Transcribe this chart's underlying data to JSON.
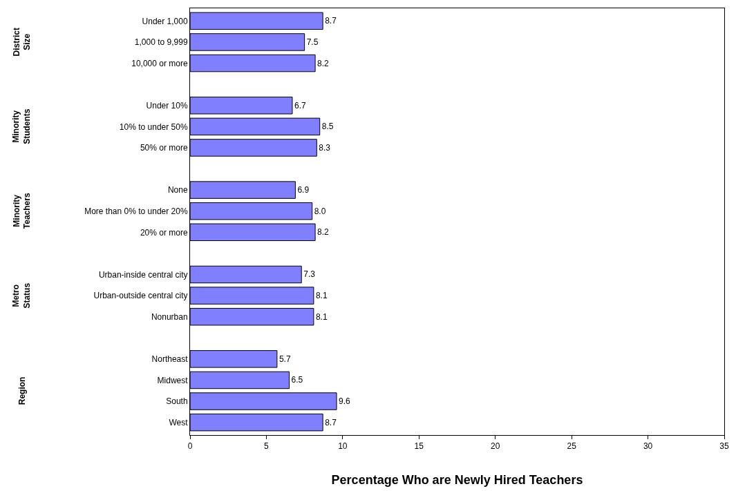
{
  "chart_data": {
    "type": "bar",
    "orientation": "horizontal",
    "xlabel": "Percentage Who are Newly Hired Teachers",
    "categories": [
      "Under 1,000",
      "1,000 to 9,999",
      "10,000 or more",
      null,
      "Under 10%",
      "10% to under 50%",
      "50% or more",
      null,
      "None",
      "More than 0% to under 20%",
      "20% or more",
      null,
      "Urban-inside central city",
      "Urban-outside central city",
      "Nonurban",
      null,
      "Northeast",
      "Midwest",
      "South",
      "West"
    ],
    "values": [
      8.7,
      7.5,
      8.2,
      null,
      6.7,
      8.5,
      8.3,
      null,
      6.9,
      8.0,
      8.2,
      null,
      7.3,
      8.1,
      8.1,
      null,
      5.7,
      6.5,
      9.6,
      8.7
    ],
    "value_labels": [
      "8.7",
      "7.5",
      "8.2",
      null,
      "6.7",
      "8.5",
      "8.3",
      null,
      "6.9",
      "8.0",
      "8.2",
      null,
      "7.3",
      "8.1",
      "8.1",
      null,
      "5.7",
      "6.5",
      "9.6",
      "8.7"
    ],
    "color": "#8080ff",
    "xlim": [
      0,
      35
    ],
    "xticks": [
      0,
      5,
      10,
      15,
      20,
      25,
      30,
      35
    ],
    "annotations": [
      "District\nSize",
      "Minority\nStudents",
      "Minority\nTeachers",
      "Metro\nStatus",
      "Region"
    ],
    "legend": false
  }
}
